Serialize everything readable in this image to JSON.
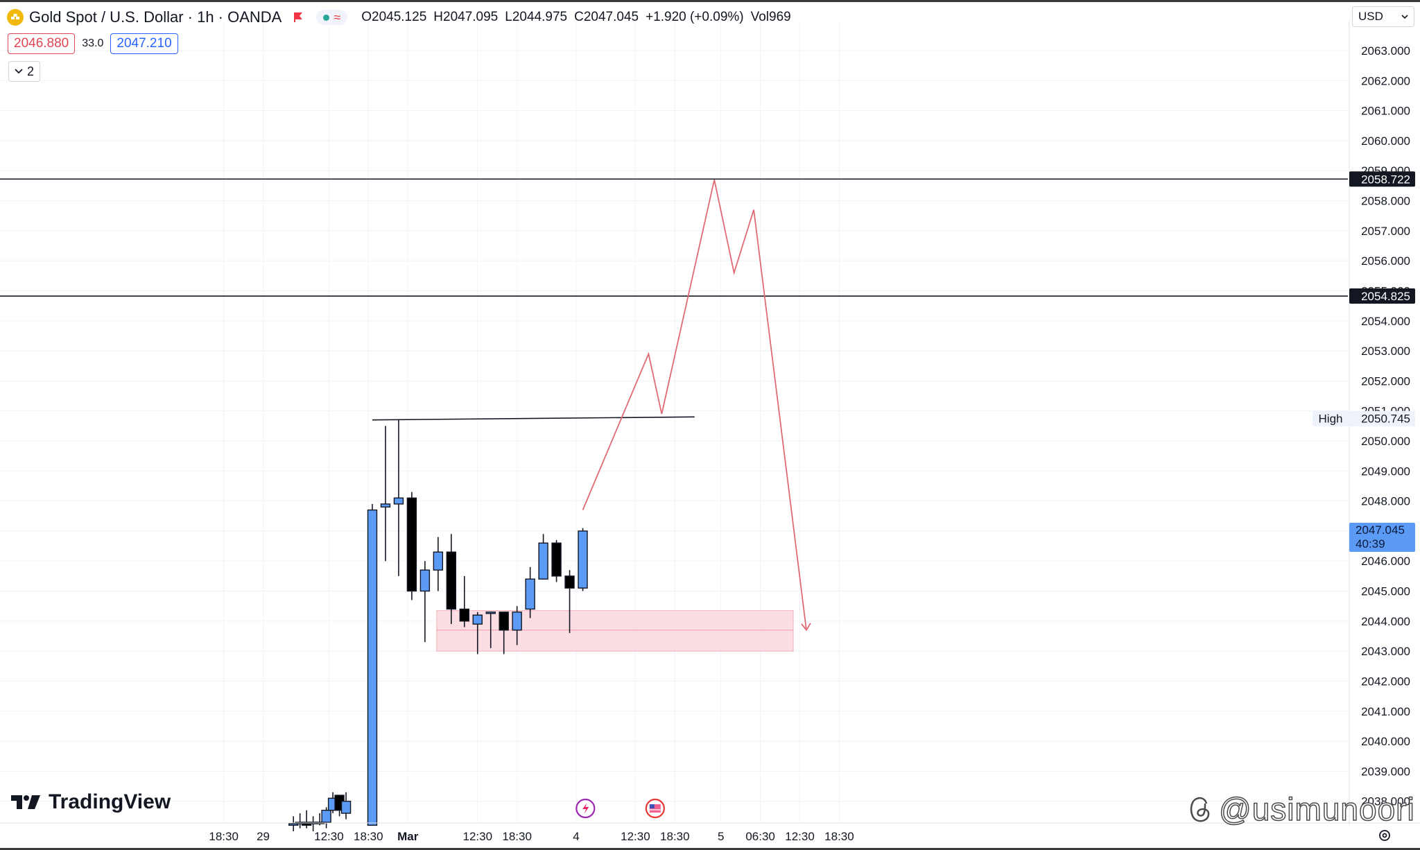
{
  "symbol": {
    "title": "Gold Spot / U.S. Dollar · 1h · OANDA",
    "open_label": "O",
    "open": "2045.125",
    "high_label": "H",
    "high": "2047.095",
    "low_label": "L",
    "low": "2044.975",
    "close_label": "C",
    "close": "2047.045",
    "change": "+1.920 (+0.09%)",
    "volume_label": "Vol",
    "volume": "969"
  },
  "trade": {
    "sell_price": "2046.880",
    "spread": "33.0",
    "buy_price": "2047.210"
  },
  "legend_toggle": {
    "count": "2"
  },
  "currency": {
    "label": "USD"
  },
  "branding": {
    "tradingview": "TradingView",
    "watermark": "@usimunoori"
  },
  "colors": {
    "up": "#5b9bf5",
    "down": "#000000",
    "projection": "#e06a74",
    "zone_fill": "#fbd9df",
    "zone_border": "#f2a2ad",
    "accent": "#2962ff"
  },
  "chart_data": {
    "type": "candlestick",
    "y_axis": {
      "min": 2037.3,
      "max": 2063.9,
      "ticks": [
        2038,
        2039,
        2040,
        2041,
        2042,
        2043,
        2044,
        2045,
        2046,
        2047,
        2048,
        2049,
        2050,
        2051,
        2052,
        2053,
        2054,
        2055,
        2056,
        2057,
        2058,
        2059,
        2060,
        2061,
        2062,
        2063
      ],
      "tick_labels": [
        "2038.000",
        "2039.000",
        "2040.000",
        "2041.000",
        "2042.000",
        "2043.000",
        "2044.000",
        "2045.000",
        "2046.000",
        "2047.000",
        "2048.000",
        "2049.000",
        "2050.000",
        "2051.000",
        "2052.000",
        "2053.000",
        "2054.000",
        "2055.000",
        "2056.000",
        "2057.000",
        "2058.000",
        "2059.000",
        "2060.000",
        "2061.000",
        "2062.000",
        "2063.000"
      ]
    },
    "x_axis": {
      "labels": [
        "18:30",
        "29",
        "12:30",
        "18:30",
        "Mar",
        "12:30",
        "18:30",
        "4",
        "12:30",
        "18:30",
        "5",
        "06:30",
        "12:30",
        "18:30"
      ],
      "bold": [
        false,
        false,
        false,
        false,
        true,
        false,
        false,
        false,
        false,
        false,
        false,
        false,
        false,
        false
      ],
      "bar_index": [
        -11.3,
        -8.3,
        -3.3,
        -0.3,
        2.7,
        8.0,
        11.0,
        15.5,
        20.0,
        23.0,
        26.5,
        29.5,
        32.5,
        35.5
      ]
    },
    "candles": [
      {
        "i": -6.0,
        "o": 2037.2,
        "h": 2037.5,
        "l": 2037.0,
        "c": 2037.25
      },
      {
        "i": -5.5,
        "o": 2037.25,
        "h": 2037.6,
        "l": 2037.1,
        "c": 2037.3
      },
      {
        "i": -5.0,
        "o": 2037.3,
        "h": 2037.7,
        "l": 2037.1,
        "c": 2037.2
      },
      {
        "i": -4.5,
        "o": 2037.25,
        "h": 2037.5,
        "l": 2037.0,
        "c": 2037.3
      },
      {
        "i": -4.0,
        "o": 2037.3,
        "h": 2037.6,
        "l": 2037.2,
        "c": 2037.3
      },
      {
        "i": -3.5,
        "o": 2037.3,
        "h": 2037.8,
        "l": 2037.1,
        "c": 2037.7
      },
      {
        "i": -3.0,
        "o": 2037.7,
        "h": 2038.3,
        "l": 2037.6,
        "c": 2038.1
      },
      {
        "i": -2.5,
        "o": 2038.2,
        "h": 2038.1,
        "l": 2037.5,
        "c": 2037.7
      },
      {
        "i": -2.0,
        "o": 2037.6,
        "h": 2038.3,
        "l": 2037.4,
        "c": 2038.0
      },
      {
        "i": 0,
        "o": 2037.2,
        "h": 2047.9,
        "l": 2037.2,
        "c": 2047.7
      },
      {
        "i": 1,
        "o": 2047.8,
        "h": 2050.5,
        "l": 2046.0,
        "c": 2047.9
      },
      {
        "i": 2,
        "o": 2047.9,
        "h": 2050.7,
        "l": 2045.5,
        "c": 2048.1
      },
      {
        "i": 3,
        "o": 2048.1,
        "h": 2048.3,
        "l": 2044.7,
        "c": 2045.0
      },
      {
        "i": 4,
        "o": 2045.0,
        "h": 2046.0,
        "l": 2043.3,
        "c": 2045.7
      },
      {
        "i": 5,
        "o": 2045.7,
        "h": 2046.8,
        "l": 2045.0,
        "c": 2046.3
      },
      {
        "i": 6,
        "o": 2046.3,
        "h": 2046.9,
        "l": 2043.9,
        "c": 2044.4
      },
      {
        "i": 7,
        "o": 2044.4,
        "h": 2045.5,
        "l": 2043.8,
        "c": 2044.0
      },
      {
        "i": 8,
        "o": 2043.9,
        "h": 2044.3,
        "l": 2042.9,
        "c": 2044.2
      },
      {
        "i": 9,
        "o": 2044.3,
        "h": 2044.3,
        "l": 2043.1,
        "c": 2044.3
      },
      {
        "i": 10,
        "o": 2044.3,
        "h": 2044.3,
        "l": 2042.9,
        "c": 2043.7
      },
      {
        "i": 11,
        "o": 2043.7,
        "h": 2044.5,
        "l": 2043.2,
        "c": 2044.3
      },
      {
        "i": 12,
        "o": 2044.4,
        "h": 2045.8,
        "l": 2044.1,
        "c": 2045.4
      },
      {
        "i": 13,
        "o": 2045.4,
        "h": 2046.9,
        "l": 2045.4,
        "c": 2046.6
      },
      {
        "i": 14,
        "o": 2046.6,
        "h": 2046.7,
        "l": 2045.3,
        "c": 2045.5
      },
      {
        "i": 15,
        "o": 2045.5,
        "h": 2045.7,
        "l": 2043.6,
        "c": 2045.1
      },
      {
        "i": 16,
        "o": 2045.1,
        "h": 2047.1,
        "l": 2045.0,
        "c": 2047.0
      }
    ],
    "horizontal_lines": [
      {
        "price": 2058.722,
        "label": "2058.722"
      },
      {
        "price": 2054.825,
        "label": "2054.825"
      }
    ],
    "trend_line": {
      "from_i": 0,
      "to_i": 24.5,
      "from_price": 2050.7,
      "to_price": 2050.8
    },
    "high_marker": {
      "label": "High",
      "value": "2050.745",
      "price": 2050.745
    },
    "current_price": {
      "value": "2047.045",
      "countdown": "40:39",
      "price": 2047.045
    },
    "demand_zone": {
      "from_i": 5,
      "to_i": 32,
      "top": 2044.35,
      "bottom": 2043.0,
      "mid": 2043.7
    },
    "projection_path": [
      {
        "i": 16,
        "price": 2047.7
      },
      {
        "i": 21,
        "price": 2052.9
      },
      {
        "i": 22,
        "price": 2050.9
      },
      {
        "i": 26,
        "price": 2058.7
      },
      {
        "i": 27.5,
        "price": 2055.6
      },
      {
        "i": 29,
        "price": 2057.7
      },
      {
        "i": 33,
        "price": 2043.7
      }
    ],
    "event_icons": [
      {
        "i": 16.2,
        "name": "earnings-flash-icon"
      },
      {
        "i": 21.5,
        "name": "us-flag-event-icon"
      }
    ]
  }
}
